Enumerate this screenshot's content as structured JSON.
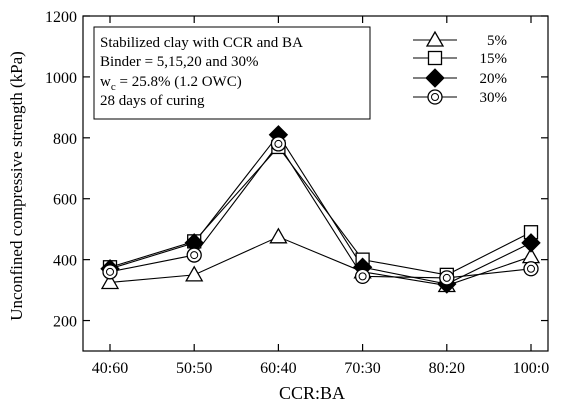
{
  "chart_data": {
    "type": "line",
    "xlabel": "CCR:BA",
    "ylabel": "Unconfined compressive strength (kPa)",
    "categories": [
      "40:60",
      "50:50",
      "60:40",
      "70:30",
      "80:20",
      "100:0"
    ],
    "ylim": [
      100,
      1200
    ],
    "yticks": [
      200,
      400,
      600,
      800,
      1000,
      1200
    ],
    "grid": false,
    "annotation": {
      "lines": [
        "Stabilized clay with CCR and BA",
        "Binder = 5,15,20 and 30%",
        "(1.2 OWC)",
        "28 days of curing"
      ],
      "wc_symbol": "w",
      "wc_subscript": "c",
      "wc_value": " = 25.8% "
    },
    "legend_position": "top-right",
    "series": [
      {
        "name": "5%",
        "marker": "triangle-open",
        "values": [
          325,
          350,
          475,
          360,
          315,
          410
        ]
      },
      {
        "name": "15%",
        "marker": "square-open",
        "values": [
          375,
          460,
          770,
          400,
          350,
          490
        ]
      },
      {
        "name": "20%",
        "marker": "diamond-filled",
        "values": [
          370,
          455,
          810,
          375,
          320,
          455
        ]
      },
      {
        "name": "30%",
        "marker": "circle-dot",
        "values": [
          360,
          415,
          780,
          345,
          340,
          370
        ]
      }
    ]
  }
}
